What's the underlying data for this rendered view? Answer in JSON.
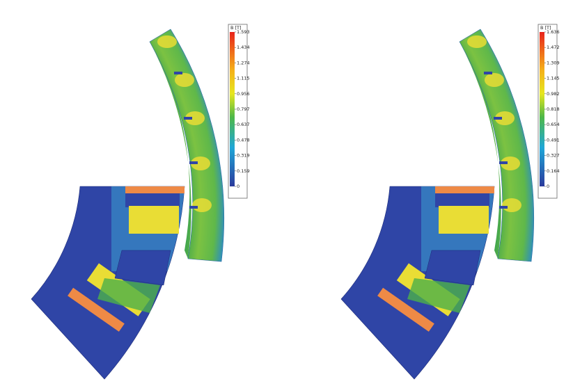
{
  "panels": [
    {
      "colorbar": {
        "title": "B [T]",
        "ticks": [
          "1.593",
          "1.434",
          "1.274",
          "1.115",
          "0.956",
          "0.797",
          "0.637",
          "0.478",
          "0.319",
          "0.159",
          "0"
        ]
      }
    },
    {
      "colorbar": {
        "title": "B [T]",
        "ticks": [
          "1.636",
          "1.472",
          "1.309",
          "1.145",
          "0.982",
          "0.818",
          "0.654",
          "0.491",
          "0.327",
          "0.164",
          "0"
        ]
      }
    }
  ]
}
